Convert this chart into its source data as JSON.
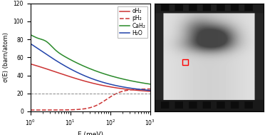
{
  "legend_labels": [
    "oH₂",
    "pH₂",
    "CaH₂",
    "H₂O"
  ],
  "xlabel": "E (meV)",
  "ylabel": "σ(E) (barn/atom)",
  "xlim_log": [
    1.0,
    1000.0
  ],
  "ylim": [
    0,
    120
  ],
  "dashed_line_y": 20,
  "bg_color": "#ffffff",
  "oH2_color": "#cc3333",
  "pH2_color": "#cc3333",
  "CaH2_color": "#2a8a2a",
  "H2O_color": "#2244aa",
  "lw": 1.1
}
